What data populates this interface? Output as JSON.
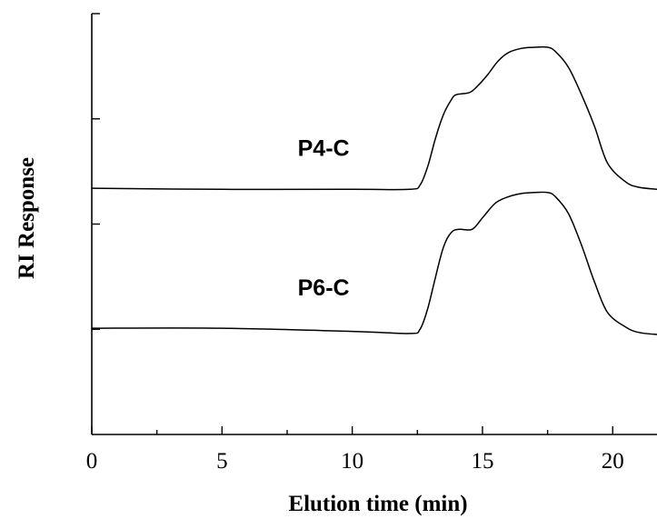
{
  "chart_data": {
    "type": "line",
    "xlabel": "Elution time (min)",
    "ylabel": "RI Response",
    "xlim": [
      0,
      21.7
    ],
    "ylim": [
      0,
      4
    ],
    "x_ticks": [
      0,
      5,
      10,
      15,
      20
    ],
    "x_tick_labels": [
      "0",
      "5",
      "10",
      "15",
      "20"
    ],
    "x_minor_ticks": [
      2.5,
      7.5,
      12.5,
      17.5
    ],
    "y_ticks": [
      1,
      2,
      3,
      4
    ],
    "y_tick_labels": [],
    "grid": false,
    "legend": "none",
    "series": [
      {
        "name": "P4-C",
        "x": [
          0,
          5,
          10,
          12.2,
          12.6,
          12.9,
          13.2,
          13.5,
          13.8,
          14.0,
          14.5,
          14.8,
          15.2,
          15.6,
          16.0,
          16.5,
          17.0,
          17.5,
          17.8,
          18.3,
          18.8,
          19.3,
          19.8,
          20.5,
          21.0,
          21.7
        ],
        "y": [
          2.34,
          2.33,
          2.33,
          2.33,
          2.37,
          2.55,
          2.82,
          3.04,
          3.18,
          3.23,
          3.25,
          3.31,
          3.42,
          3.55,
          3.63,
          3.67,
          3.68,
          3.68,
          3.64,
          3.49,
          3.23,
          2.93,
          2.58,
          2.4,
          2.35,
          2.33
        ]
      },
      {
        "name": "P6-C",
        "x": [
          0,
          5,
          10,
          12.2,
          12.6,
          12.9,
          13.2,
          13.5,
          13.8,
          14.1,
          14.6,
          15.0,
          15.5,
          16.0,
          16.5,
          17.0,
          17.5,
          17.8,
          18.3,
          18.8,
          19.3,
          19.8,
          20.5,
          21.0,
          21.7
        ],
        "y": [
          1.01,
          1.01,
          0.98,
          0.96,
          1.0,
          1.2,
          1.5,
          1.78,
          1.92,
          1.95,
          1.95,
          2.06,
          2.2,
          2.26,
          2.29,
          2.3,
          2.3,
          2.26,
          2.1,
          1.8,
          1.45,
          1.16,
          1.02,
          0.97,
          0.95
        ]
      }
    ],
    "annotations": [
      {
        "text": "P4-C",
        "x": 8.9,
        "y": 2.65
      },
      {
        "text": "P6-C",
        "x": 8.9,
        "y": 1.32
      }
    ]
  }
}
